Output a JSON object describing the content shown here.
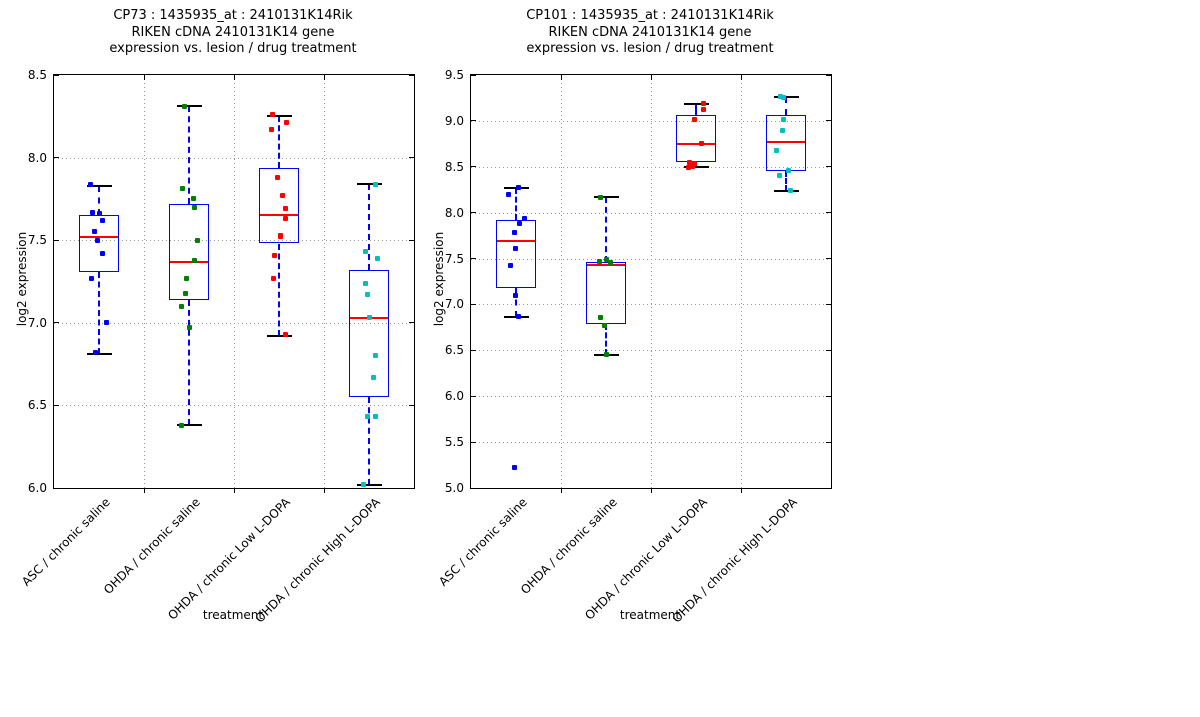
{
  "style": {
    "background": "#ffffff",
    "box_edge": "#0000ff",
    "median": "#ff0000",
    "whisker": "#0000ff",
    "cap": "#000000",
    "grid": "#999999",
    "axis": "#000000",
    "text": "#000000"
  },
  "chart_data": [
    {
      "type": "boxplot",
      "title_lines": [
        "CP73 : 1435935_at : 2410131K14Rik",
        "RIKEN cDNA 2410131K14 gene",
        "expression vs. lesion / drug treatment"
      ],
      "xlabel": "treatment",
      "ylabel": "log2 expression",
      "ylim": [
        6.0,
        8.5
      ],
      "yticks": [
        6.0,
        6.5,
        7.0,
        7.5,
        8.0,
        8.5
      ],
      "grid": true,
      "categories": [
        "ASC / chronic saline",
        "OHDA / chronic saline",
        "OHDA / chronic Low L-DOPA",
        "OHDA / chronic High L-DOPA"
      ],
      "groups": [
        {
          "label": "ASC / chronic saline",
          "color": "#0000ff",
          "box": {
            "whisker_low": 6.81,
            "q1": 7.31,
            "median": 7.52,
            "q3": 7.65,
            "whisker_high": 7.83
          },
          "points": [
            {
              "v": 7.84,
              "dx": -0.42
            },
            {
              "v": 7.67,
              "dx": -0.33
            },
            {
              "v": 7.66,
              "dx": 0.0
            },
            {
              "v": 7.62,
              "dx": 0.17
            },
            {
              "v": 7.55,
              "dx": -0.25
            },
            {
              "v": 7.5,
              "dx": -0.08
            },
            {
              "v": 7.42,
              "dx": 0.18
            },
            {
              "v": 7.27,
              "dx": -0.38
            },
            {
              "v": 7.0,
              "dx": 0.35
            },
            {
              "v": 6.82,
              "dx": -0.2
            }
          ]
        },
        {
          "label": "OHDA / chronic saline",
          "color": "#008000",
          "box": {
            "whisker_low": 6.38,
            "q1": 7.14,
            "median": 7.37,
            "q3": 7.72,
            "whisker_high": 8.31
          },
          "points": [
            {
              "v": 8.31,
              "dx": -0.24
            },
            {
              "v": 7.81,
              "dx": -0.35
            },
            {
              "v": 7.75,
              "dx": 0.23
            },
            {
              "v": 7.7,
              "dx": 0.25
            },
            {
              "v": 7.5,
              "dx": 0.42
            },
            {
              "v": 7.38,
              "dx": 0.25
            },
            {
              "v": 7.27,
              "dx": -0.14
            },
            {
              "v": 7.18,
              "dx": -0.19
            },
            {
              "v": 7.1,
              "dx": -0.4
            },
            {
              "v": 6.97,
              "dx": 0.0
            },
            {
              "v": 6.38,
              "dx": -0.4
            }
          ]
        },
        {
          "label": "OHDA / chronic Low L-DOPA",
          "color": "#ff0000",
          "box": {
            "whisker_low": 6.92,
            "q1": 7.48,
            "median": 7.65,
            "q3": 7.94,
            "whisker_high": 8.25
          },
          "points": [
            {
              "v": 8.26,
              "dx": -0.32
            },
            {
              "v": 8.21,
              "dx": 0.37
            },
            {
              "v": 8.17,
              "dx": -0.38
            },
            {
              "v": 7.88,
              "dx": -0.08
            },
            {
              "v": 7.77,
              "dx": 0.19
            },
            {
              "v": 7.69,
              "dx": 0.3
            },
            {
              "v": 7.63,
              "dx": 0.3
            },
            {
              "v": 7.53,
              "dx": 0.05
            },
            {
              "v": 7.52,
              "dx": 0.05
            },
            {
              "v": 7.41,
              "dx": -0.25
            },
            {
              "v": 7.27,
              "dx": -0.28
            },
            {
              "v": 6.93,
              "dx": 0.32
            }
          ]
        },
        {
          "label": "OHDA / chronic High L-DOPA",
          "color": "#00bfbf",
          "box": {
            "whisker_low": 6.02,
            "q1": 6.55,
            "median": 7.03,
            "q3": 7.32,
            "whisker_high": 7.84
          },
          "points": [
            {
              "v": 7.84,
              "dx": 0.33
            },
            {
              "v": 7.43,
              "dx": -0.17
            },
            {
              "v": 7.39,
              "dx": 0.43
            },
            {
              "v": 7.24,
              "dx": -0.17
            },
            {
              "v": 7.17,
              "dx": -0.07
            },
            {
              "v": 7.03,
              "dx": 0.03
            },
            {
              "v": 6.8,
              "dx": 0.32
            },
            {
              "v": 6.67,
              "dx": 0.23
            },
            {
              "v": 6.43,
              "dx": -0.1
            },
            {
              "v": 6.43,
              "dx": 0.3
            },
            {
              "v": 6.02,
              "dx": -0.28
            }
          ]
        }
      ]
    },
    {
      "type": "boxplot",
      "title_lines": [
        "CP101 : 1435935_at : 2410131K14Rik",
        "RIKEN cDNA 2410131K14 gene",
        "expression vs. lesion / drug treatment"
      ],
      "xlabel": "treatment",
      "ylabel": "log2 expression",
      "ylim": [
        5.0,
        9.5
      ],
      "yticks": [
        5.0,
        5.5,
        6.0,
        6.5,
        7.0,
        7.5,
        8.0,
        8.5,
        9.0,
        9.5
      ],
      "grid": true,
      "categories": [
        "ASC / chronic saline",
        "OHDA / chronic saline",
        "OHDA / chronic Low L-DOPA",
        "OHDA / chronic High L-DOPA"
      ],
      "groups": [
        {
          "label": "ASC / chronic saline",
          "color": "#0000ff",
          "box": {
            "whisker_low": 6.86,
            "q1": 7.18,
            "median": 7.69,
            "q3": 7.92,
            "whisker_high": 8.27
          },
          "points": [
            {
              "v": 8.27,
              "dx": 0.13
            },
            {
              "v": 8.2,
              "dx": -0.37
            },
            {
              "v": 7.94,
              "dx": 0.41
            },
            {
              "v": 7.88,
              "dx": 0.18
            },
            {
              "v": 7.78,
              "dx": -0.06
            },
            {
              "v": 7.61,
              "dx": -0.01
            },
            {
              "v": 7.42,
              "dx": -0.3
            },
            {
              "v": 7.1,
              "dx": -0.01
            },
            {
              "v": 6.87,
              "dx": 0.1
            },
            {
              "v": 5.22,
              "dx": -0.06
            }
          ]
        },
        {
          "label": "OHDA / chronic saline",
          "color": "#008000",
          "box": {
            "whisker_low": 6.45,
            "q1": 6.79,
            "median": 7.43,
            "q3": 7.46,
            "whisker_high": 8.17
          },
          "points": [
            {
              "v": 8.17,
              "dx": -0.3
            },
            {
              "v": 7.49,
              "dx": 0.0
            },
            {
              "v": 7.47,
              "dx": -0.33
            },
            {
              "v": 7.46,
              "dx": 0.23
            },
            {
              "v": 6.86,
              "dx": -0.3
            },
            {
              "v": 6.77,
              "dx": -0.1
            },
            {
              "v": 6.45,
              "dx": 0.0
            }
          ]
        },
        {
          "label": "OHDA / chronic Low L-DOPA",
          "color": "#ff0000",
          "box": {
            "whisker_low": 8.5,
            "q1": 8.55,
            "median": 8.75,
            "q3": 9.06,
            "whisker_high": 9.18
          },
          "points": [
            {
              "v": 9.19,
              "dx": 0.38
            },
            {
              "v": 9.12,
              "dx": 0.35
            },
            {
              "v": 9.02,
              "dx": -0.1
            },
            {
              "v": 8.75,
              "dx": 0.27
            },
            {
              "v": 8.55,
              "dx": -0.32
            },
            {
              "v": 8.54,
              "dx": -0.07
            },
            {
              "v": 8.5,
              "dx": -0.18
            },
            {
              "v": 8.49,
              "dx": -0.4
            }
          ]
        },
        {
          "label": "OHDA / chronic High L-DOPA",
          "color": "#00bfbf",
          "box": {
            "whisker_low": 8.24,
            "q1": 8.45,
            "median": 8.77,
            "q3": 9.06,
            "whisker_high": 9.26
          },
          "points": [
            {
              "v": 9.27,
              "dx": -0.27
            },
            {
              "v": 9.25,
              "dx": -0.11
            },
            {
              "v": 9.01,
              "dx": -0.11
            },
            {
              "v": 8.9,
              "dx": -0.16
            },
            {
              "v": 8.68,
              "dx": -0.49
            },
            {
              "v": 8.46,
              "dx": 0.13
            },
            {
              "v": 8.41,
              "dx": -0.35
            },
            {
              "v": 8.24,
              "dx": 0.21
            }
          ]
        }
      ]
    }
  ]
}
